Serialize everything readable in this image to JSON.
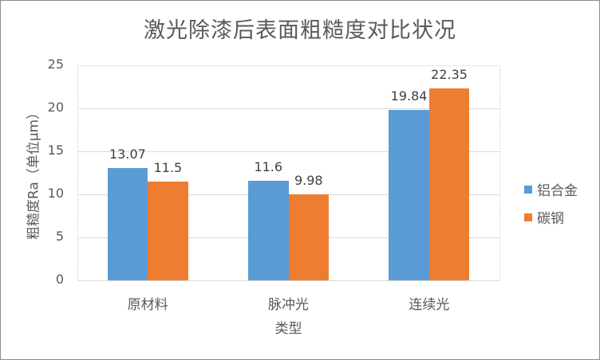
{
  "chart_data": {
    "type": "bar",
    "title": "激光除漆后表面粗糙度对比状况",
    "xlabel": "类型",
    "ylabel": "粗糙度Ra（单位μm）",
    "categories": [
      "原材料",
      "脉冲光",
      "连续光"
    ],
    "series": [
      {
        "name": "铝合金",
        "color": "#5b9bd5",
        "values": [
          13.07,
          11.6,
          19.84
        ]
      },
      {
        "name": "碳钢",
        "color": "#ed7d31",
        "values": [
          11.5,
          9.98,
          22.35
        ]
      }
    ],
    "data_labels": [
      [
        "13.07",
        "11.6",
        "19.84"
      ],
      [
        "11.5",
        "9.98",
        "22.35"
      ]
    ],
    "ylim": [
      0,
      25
    ],
    "yticks": [
      "0",
      "5",
      "10",
      "15",
      "20",
      "25"
    ],
    "grid": true,
    "legend_position": "right"
  }
}
